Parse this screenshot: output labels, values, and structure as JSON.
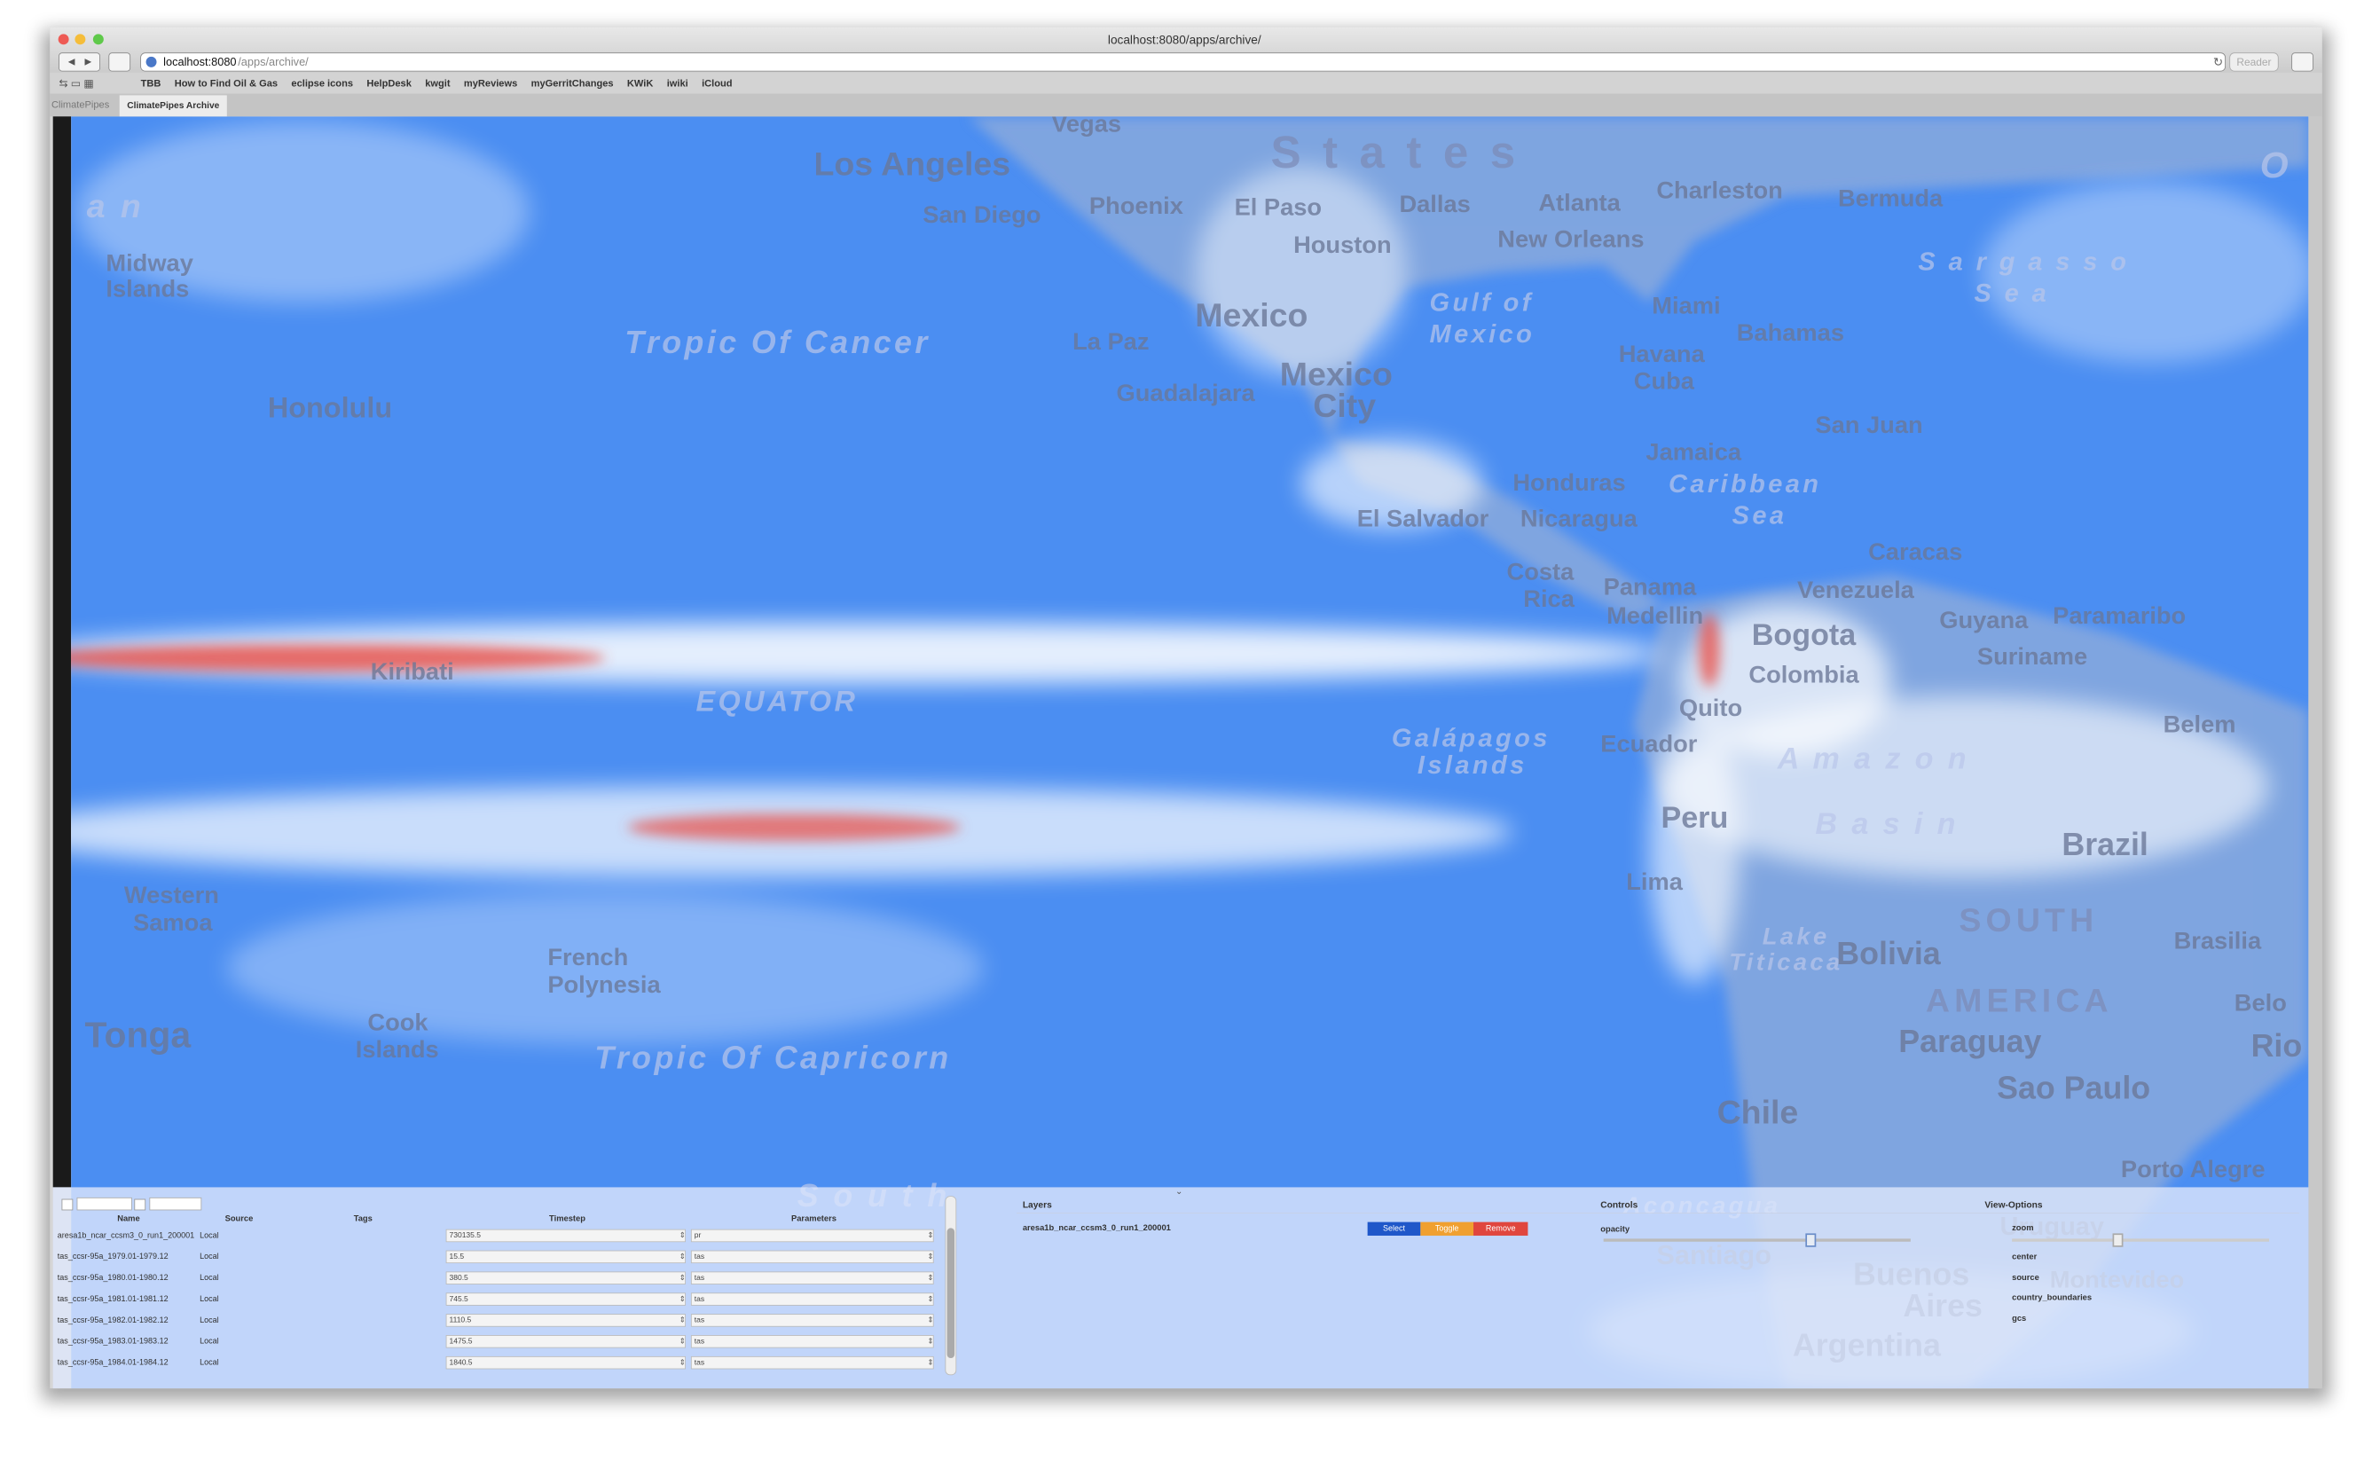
{
  "window": {
    "title": "localhost:8080/apps/archive/",
    "address_host": "localhost:8080",
    "address_path": "/apps/archive/",
    "reader": "Reader"
  },
  "bookmarks": [
    "TBB",
    "How to Find Oil & Gas",
    "eclipse icons",
    "HelpDesk",
    "kwgit",
    "myReviews",
    "myGerritChanges",
    "KWiK",
    "iwiki",
    "iCloud"
  ],
  "tabs": [
    "ClimatePipes",
    "ClimatePipes Archive"
  ],
  "map": {
    "labels": [
      "Los Angeles",
      "San Diego",
      "Phoenix",
      "El Paso",
      "Dallas",
      "Atlanta",
      "Charleston",
      "Bermuda",
      "Houston",
      "New Orleans",
      "Midway",
      "Islands",
      "Mexico",
      "Miami",
      "Bahamas",
      "Tropic Of Cancer",
      "Gulf of",
      "Mexico",
      "La Paz",
      "Havana",
      "Cuba",
      "Mexico",
      "City",
      "Guadalajara",
      "Honolulu",
      "San Juan",
      "Jamaica",
      "Honduras",
      "Caribbean",
      "Sea",
      "El Salvador",
      "Nicaragua",
      "Caracas",
      "Costa",
      "Rica",
      "Panama",
      "Venezuela",
      "Medellin",
      "Bogota",
      "Guyana",
      "Paramaribo",
      "Suriname",
      "Kiribati",
      "Colombia",
      "EQUATOR",
      "Quito",
      "Belem",
      "Galápagos",
      "Islands",
      "Ecuador",
      "A m a z o n",
      "B a s i n",
      "Peru",
      "Brazil",
      "Lima",
      "Western",
      "Samoa",
      "SOUTH",
      "Lake",
      "Titicaca",
      "Bolivia",
      "Brasilia",
      "French",
      "Polynesia",
      "AMERICA",
      "Belo",
      "Tonga",
      "Cook",
      "Islands",
      "Paraguay",
      "Rio",
      "Tropic Of Capricorn",
      "Sao Paulo",
      "Chile",
      "Porto Alegre",
      "Vegas",
      "S t a t e s",
      "S a r g a s s o",
      "S e a",
      "e a n",
      "O",
      "Aconcagua",
      "Santiago",
      "Buenos",
      "Aires",
      "Montevideo",
      "Argentina",
      "Uruguay",
      "S o u t h"
    ]
  },
  "datasets": {
    "headers": [
      "Name",
      "Source",
      "Tags",
      "Timestep",
      "Parameters"
    ],
    "rows": [
      {
        "name": "aresa1b_ncar_ccsm3_0_run1_200001",
        "source": "Local",
        "timestep": 730135.5,
        "parameter": "pr"
      },
      {
        "name": "tas_ccsr-95a_1979.01-1979.12",
        "source": "Local",
        "timestep": 15.5,
        "parameter": "tas"
      },
      {
        "name": "tas_ccsr-95a_1980.01-1980.12",
        "source": "Local",
        "timestep": 380.5,
        "parameter": "tas"
      },
      {
        "name": "tas_ccsr-95a_1981.01-1981.12",
        "source": "Local",
        "timestep": 745.5,
        "parameter": "tas"
      },
      {
        "name": "tas_ccsr-95a_1982.01-1982.12",
        "source": "Local",
        "timestep": 1110.5,
        "parameter": "tas"
      },
      {
        "name": "tas_ccsr-95a_1983.01-1983.12",
        "source": "Local",
        "timestep": 1475.5,
        "parameter": "tas"
      },
      {
        "name": "tas_ccsr-95a_1984.01-1984.12",
        "source": "Local",
        "timestep": 1840.5,
        "parameter": "tas"
      }
    ]
  },
  "layers": {
    "title": "Layers",
    "items": [
      "aresa1b_ncar_ccsm3_0_run1_200001"
    ],
    "buttons": [
      "Select",
      "Toggle",
      "Remove"
    ]
  },
  "controls": {
    "title": "Controls",
    "items": [
      "opacity"
    ]
  },
  "view_options": {
    "title": "View-Options",
    "items": [
      "zoom",
      "center",
      "source",
      "country_boundaries",
      "gcs"
    ]
  }
}
